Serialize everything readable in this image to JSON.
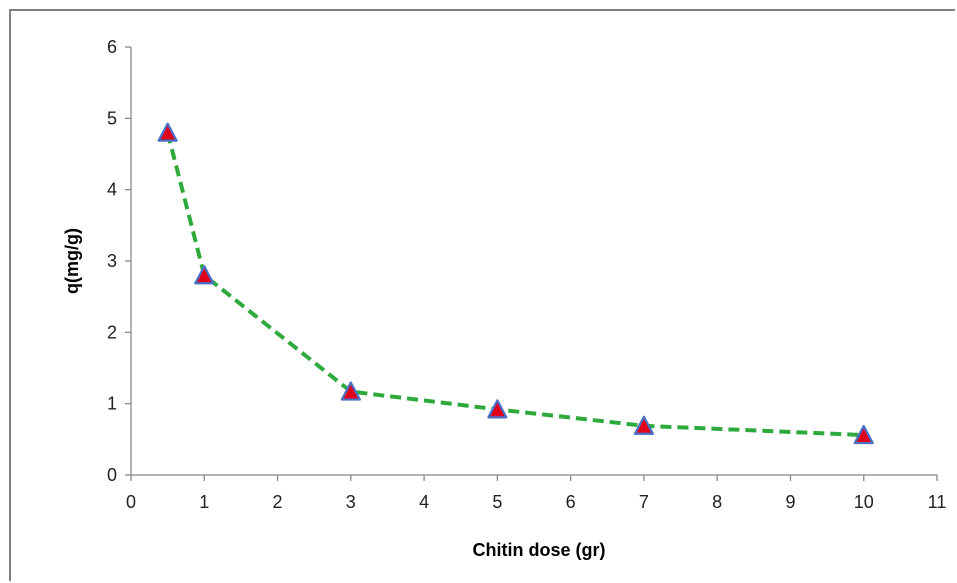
{
  "chart_data": {
    "type": "line",
    "title": "",
    "xlabel": "Chitin dose (gr)",
    "ylabel": "q(mg/g)",
    "xlim": [
      0,
      11
    ],
    "ylim": [
      0,
      6
    ],
    "x_ticks": [
      0,
      1,
      2,
      3,
      4,
      5,
      6,
      7,
      8,
      9,
      10,
      11
    ],
    "y_ticks": [
      0,
      1,
      2,
      3,
      4,
      5,
      6
    ],
    "grid": false,
    "legend": "none",
    "series": [
      {
        "x": [
          0.5,
          1,
          3,
          5,
          7,
          10
        ],
        "y": [
          4.8,
          2.8,
          1.17,
          0.92,
          0.69,
          0.56
        ],
        "line_color": "#2eaa3c",
        "line_style": "dashed",
        "marker": "triangle",
        "marker_fill": "#e0001a",
        "marker_edge": "#4a6fc6"
      }
    ]
  }
}
